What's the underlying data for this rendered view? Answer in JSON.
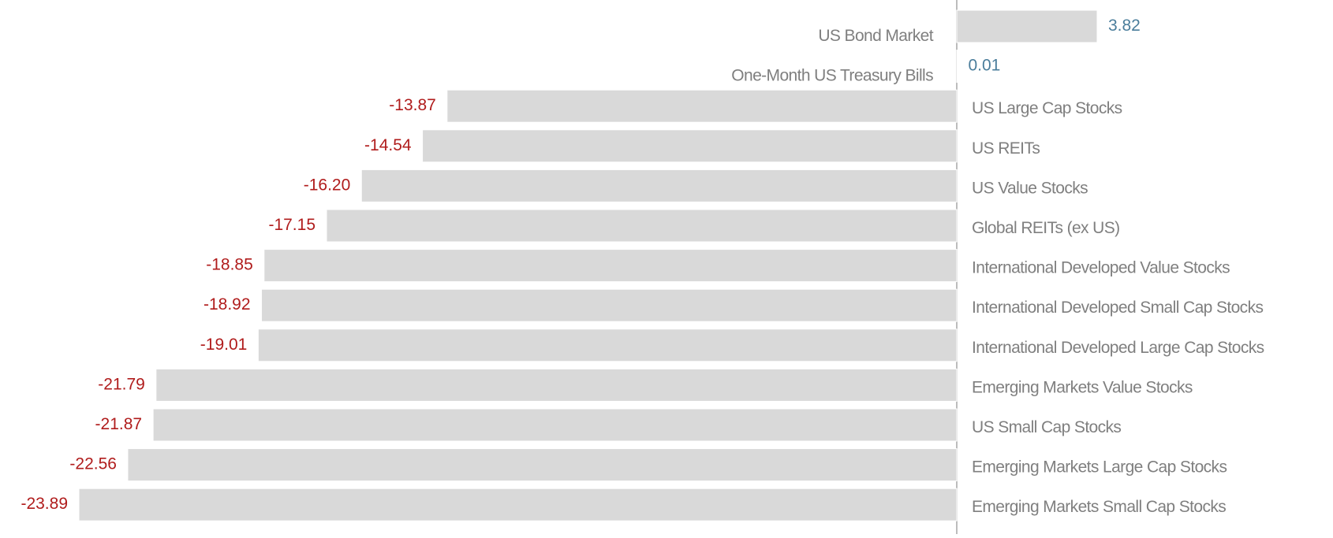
{
  "chart_data": {
    "type": "bar",
    "orientation": "horizontal",
    "categories": [
      "US Bond Market",
      "One-Month US Treasury Bills",
      "US Large Cap Stocks",
      "US REITs",
      "US Value Stocks",
      "Global REITs (ex US)",
      "International Developed Value Stocks",
      "International Developed Small Cap Stocks",
      "International Developed Large Cap Stocks",
      "Emerging Markets Value Stocks",
      "US Small Cap Stocks",
      "Emerging Markets Large Cap Stocks",
      "Emerging Markets Small Cap Stocks"
    ],
    "values": [
      3.82,
      0.01,
      -13.87,
      -14.54,
      -16.2,
      -17.15,
      -18.85,
      -18.92,
      -19.01,
      -21.79,
      -21.87,
      -22.56,
      -23.89
    ],
    "value_labels": [
      "3.82",
      "0.01",
      "-13.87",
      "-14.54",
      "-16.20",
      "-17.15",
      "-18.85",
      "-18.92",
      "-19.01",
      "-21.79",
      "-21.87",
      "-22.56",
      "-23.89"
    ],
    "color": "#d9d9d9",
    "positive_label_color": "#4a7d9b",
    "negative_label_color": "#b01c1c"
  }
}
